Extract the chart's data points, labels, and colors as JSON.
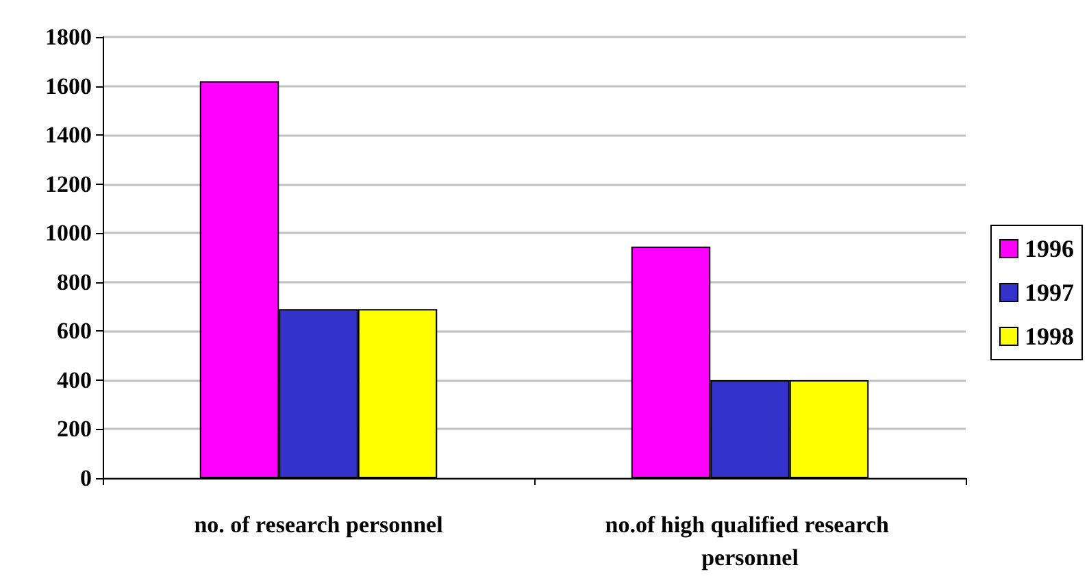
{
  "chart_data": {
    "type": "bar",
    "categories": [
      "no. of research personnel",
      "no.of high qualified research personnel"
    ],
    "series": [
      {
        "name": "1996",
        "color": "#ff00ff",
        "values": [
          1620,
          945
        ]
      },
      {
        "name": "1997",
        "color": "#3333cc",
        "values": [
          690,
          400
        ]
      },
      {
        "name": "1998",
        "color": "#ffff00",
        "values": [
          690,
          400
        ]
      }
    ],
    "ylim": [
      0,
      1800
    ],
    "yticks": [
      0,
      200,
      400,
      600,
      800,
      1000,
      1200,
      1400,
      1600,
      1800
    ],
    "grid": "y",
    "legend": "right"
  }
}
